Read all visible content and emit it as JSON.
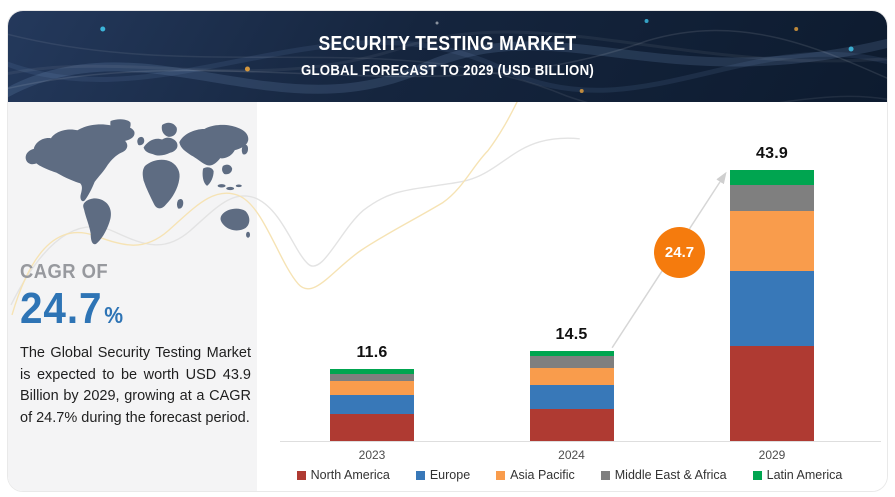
{
  "header": {
    "title": "SECURITY TESTING MARKET",
    "subtitle": "GLOBAL FORECAST TO 2029 (USD BILLION)"
  },
  "left_panel": {
    "cagr_label": "CAGR OF",
    "cagr_value": "24.7",
    "cagr_percent": "%",
    "description": "The Global Security Testing Market is expected to be worth USD 43.9 Billion by 2029, growing at a CAGR of 24.7% during the forecast period."
  },
  "chart_data": {
    "type": "bar",
    "stacked": true,
    "title": "SECURITY TESTING MARKET",
    "subtitle": "GLOBAL FORECAST TO 2029 (USD BILLION)",
    "unit": "USD Billion",
    "categories": [
      "2023",
      "2024",
      "2029"
    ],
    "series": [
      {
        "name": "North America",
        "color": "#AF3A32",
        "values": [
          4.3,
          5.2,
          15.4
        ]
      },
      {
        "name": "Europe",
        "color": "#3878B8",
        "values": [
          3.2,
          3.9,
          12.2
        ]
      },
      {
        "name": "Asia Pacific",
        "color": "#F99C4C",
        "values": [
          2.2,
          2.7,
          9.7
        ]
      },
      {
        "name": "Middle East & Africa",
        "color": "#7F7F7F",
        "values": [
          1.2,
          1.9,
          4.1
        ]
      },
      {
        "name": "Latin America",
        "color": "#00A550",
        "values": [
          0.7,
          0.8,
          2.5
        ]
      }
    ],
    "totals": [
      11.6,
      14.5,
      43.9
    ],
    "total_labels": [
      "11.6",
      "14.5",
      "43.9"
    ],
    "growth_badge": "24.7",
    "value_axis_visible": false,
    "grid": false,
    "legend_position": "bottom",
    "ylim": [
      0,
      47
    ]
  },
  "colors": {
    "header_bg": "#15253E",
    "accent_blue": "#2E74B5",
    "cagr_label_grey": "#97999E",
    "badge_orange": "#F57B0D",
    "map_fill": "#5E6C82",
    "panel_bg": "#F4F4F5",
    "axis_line": "#DEDEDE",
    "curve_grey": "#E3E3E3",
    "curve_yellow": "#F6E3B4"
  }
}
